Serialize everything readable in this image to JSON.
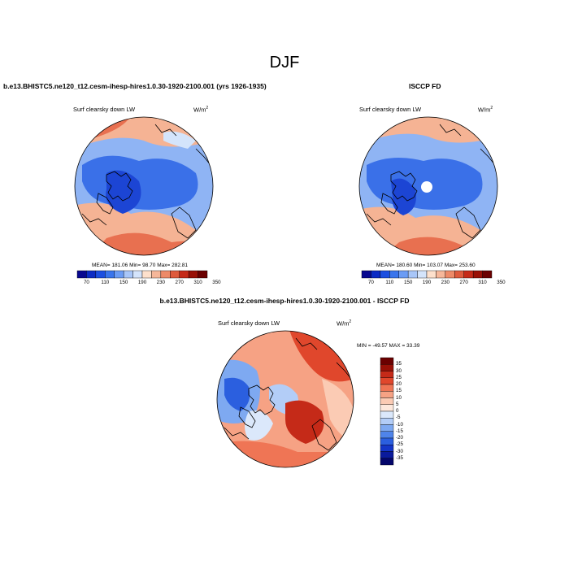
{
  "title": "DJF",
  "panel_left": {
    "case": "b.e13.BHISTC5.ne120_t12.cesm-ihesp-hires1.0.30-1920-2100.001 (yrs 1926-1935)",
    "variable": "Surf clearsky down LW",
    "units_base": "W/m",
    "units_exp": "2",
    "stats": "MEAN= 181.06  Min=  98.70  Max= 282.81"
  },
  "panel_right": {
    "case": "ISCCP FD",
    "variable": "Surf clearsky down LW",
    "units_base": "W/m",
    "units_exp": "2",
    "stats": "MEAN= 180.60  Min= 103.07  Max= 253.60"
  },
  "panel_diff": {
    "case": "b.e13.BHISTC5.ne120_t12.cesm-ihesp-hires1.0.30-1920-2100.001 - ISCCP FD",
    "variable": "Surf clearsky down LW",
    "units_base": "W/m",
    "units_exp": "2",
    "stats": "MIN = -49.57 MAX =  33.39"
  },
  "colorbar_abs": {
    "colors": [
      "#08088f",
      "#0c2cc4",
      "#1c4fe0",
      "#3a75ec",
      "#6b9cf4",
      "#a8c6f8",
      "#d4e4fb",
      "#fde0cc",
      "#f6b79a",
      "#ed8a68",
      "#de5a3c",
      "#c52a18",
      "#991006",
      "#6b0000"
    ],
    "labels": [
      "70",
      "110",
      "150",
      "190",
      "230",
      "270",
      "310",
      "350"
    ]
  },
  "colorbar_diff": {
    "colors": [
      "#6b0000",
      "#991006",
      "#c52a18",
      "#e0472c",
      "#ef7555",
      "#f6a284",
      "#fbcbb4",
      "#fde8dc",
      "#dbe8fb",
      "#b3cdf7",
      "#7ea9f1",
      "#4f84ea",
      "#2b5fdf",
      "#1436c8",
      "#0a1a9c",
      "#04066b"
    ],
    "labels": [
      "35",
      "30",
      "25",
      "20",
      "15",
      "10",
      "5",
      "0",
      "-5",
      "-10",
      "-15",
      "-20",
      "-25",
      "-30",
      "-35"
    ]
  },
  "map_palette": {
    "ocean_warm": "#e87050",
    "ocean_warm2": "#f5b394",
    "cold": "#3a70e8",
    "cold2": "#1c45d4",
    "mid": "#8fb4f4",
    "land_outline": "#000000"
  }
}
